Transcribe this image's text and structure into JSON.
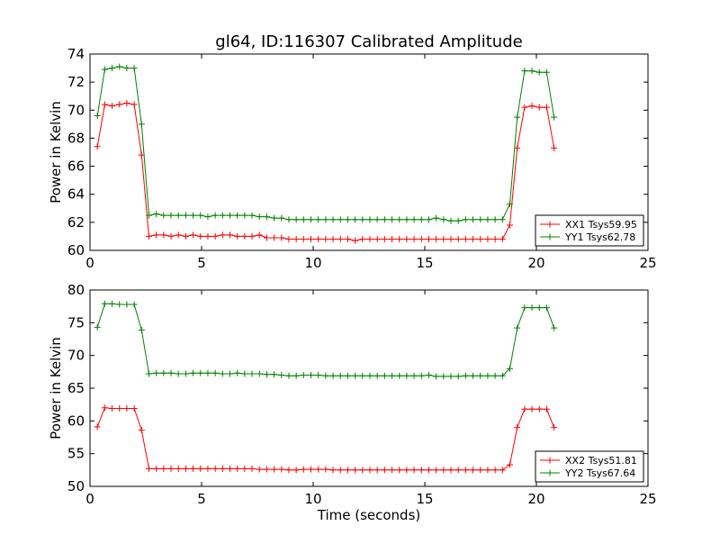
{
  "figure_title": "gl64, ID:116307 Calibrated Amplitude",
  "chart_data": [
    {
      "type": "line",
      "title": "gl64, ID:116307 Calibrated Amplitude",
      "xlabel": "",
      "ylabel": "Power in Kelvin",
      "xlim": [
        0,
        25
      ],
      "ylim": [
        60,
        74
      ],
      "xticks": [
        "0",
        "5",
        "10",
        "15",
        "20",
        "25"
      ],
      "yticks": [
        "60",
        "62",
        "64",
        "66",
        "68",
        "70",
        "72",
        "74"
      ],
      "grid": false,
      "legend_position": "lower-right",
      "x": [
        0.33,
        0.66,
        0.99,
        1.32,
        1.65,
        1.98,
        2.31,
        2.64,
        2.97,
        3.3,
        3.63,
        3.96,
        4.29,
        4.62,
        4.95,
        5.28,
        5.61,
        5.94,
        6.27,
        6.6,
        6.93,
        7.26,
        7.59,
        7.92,
        8.25,
        8.58,
        8.91,
        9.24,
        9.57,
        9.9,
        10.23,
        10.56,
        10.89,
        11.22,
        11.55,
        11.88,
        12.21,
        12.54,
        12.87,
        13.2,
        13.53,
        13.86,
        14.19,
        14.52,
        14.85,
        15.18,
        15.51,
        15.84,
        16.17,
        16.5,
        16.83,
        17.16,
        17.49,
        17.82,
        18.15,
        18.48,
        18.81,
        19.14,
        19.47,
        19.8,
        20.13,
        20.46,
        20.79
      ],
      "series": [
        {
          "name": "XX1 Tsys59.95",
          "color": "#ff0000",
          "values": [
            67.4,
            70.4,
            70.3,
            70.4,
            70.5,
            70.4,
            66.8,
            61.0,
            61.1,
            61.1,
            61.0,
            61.1,
            61.0,
            61.1,
            61.0,
            61.0,
            61.0,
            61.1,
            61.1,
            61.0,
            61.0,
            61.0,
            61.1,
            60.9,
            60.9,
            60.9,
            60.8,
            60.8,
            60.8,
            60.8,
            60.8,
            60.8,
            60.8,
            60.8,
            60.8,
            60.7,
            60.8,
            60.8,
            60.8,
            60.8,
            60.8,
            60.8,
            60.8,
            60.8,
            60.8,
            60.8,
            60.8,
            60.8,
            60.8,
            60.8,
            60.8,
            60.8,
            60.8,
            60.8,
            60.8,
            60.8,
            61.8,
            67.3,
            70.2,
            70.3,
            70.2,
            70.2,
            67.3
          ]
        },
        {
          "name": "YY1 Tsys62.78",
          "color": "#008000",
          "values": [
            69.6,
            72.9,
            73.0,
            73.1,
            73.0,
            73.0,
            69.0,
            62.5,
            62.6,
            62.5,
            62.5,
            62.5,
            62.5,
            62.5,
            62.5,
            62.4,
            62.5,
            62.5,
            62.5,
            62.5,
            62.5,
            62.5,
            62.4,
            62.4,
            62.3,
            62.3,
            62.2,
            62.2,
            62.2,
            62.2,
            62.2,
            62.2,
            62.2,
            62.2,
            62.2,
            62.2,
            62.2,
            62.2,
            62.2,
            62.2,
            62.2,
            62.2,
            62.2,
            62.2,
            62.2,
            62.2,
            62.3,
            62.2,
            62.1,
            62.1,
            62.2,
            62.2,
            62.2,
            62.2,
            62.2,
            62.2,
            63.3,
            69.5,
            72.8,
            72.8,
            72.7,
            72.7,
            69.5
          ]
        }
      ]
    },
    {
      "type": "line",
      "title": "",
      "xlabel": "Time (seconds)",
      "ylabel": "Power in Kelvin",
      "xlim": [
        0,
        25
      ],
      "ylim": [
        50,
        80
      ],
      "xticks": [
        "0",
        "5",
        "10",
        "15",
        "20",
        "25"
      ],
      "yticks": [
        "50",
        "55",
        "60",
        "65",
        "70",
        "75",
        "80"
      ],
      "grid": false,
      "legend_position": "lower-right",
      "x": [
        0.33,
        0.66,
        0.99,
        1.32,
        1.65,
        1.98,
        2.31,
        2.64,
        2.97,
        3.3,
        3.63,
        3.96,
        4.29,
        4.62,
        4.95,
        5.28,
        5.61,
        5.94,
        6.27,
        6.6,
        6.93,
        7.26,
        7.59,
        7.92,
        8.25,
        8.58,
        8.91,
        9.24,
        9.57,
        9.9,
        10.23,
        10.56,
        10.89,
        11.22,
        11.55,
        11.88,
        12.21,
        12.54,
        12.87,
        13.2,
        13.53,
        13.86,
        14.19,
        14.52,
        14.85,
        15.18,
        15.51,
        15.84,
        16.17,
        16.5,
        16.83,
        17.16,
        17.49,
        17.82,
        18.15,
        18.48,
        18.81,
        19.14,
        19.47,
        19.8,
        20.13,
        20.46,
        20.79
      ],
      "series": [
        {
          "name": "XX2 Tsys51.81",
          "color": "#ff0000",
          "values": [
            59.1,
            62.0,
            61.9,
            61.9,
            61.9,
            61.9,
            58.6,
            52.7,
            52.7,
            52.7,
            52.7,
            52.7,
            52.7,
            52.7,
            52.7,
            52.7,
            52.7,
            52.7,
            52.7,
            52.7,
            52.7,
            52.7,
            52.6,
            52.6,
            52.6,
            52.6,
            52.5,
            52.5,
            52.6,
            52.6,
            52.6,
            52.6,
            52.5,
            52.5,
            52.5,
            52.5,
            52.5,
            52.5,
            52.5,
            52.5,
            52.5,
            52.5,
            52.5,
            52.5,
            52.5,
            52.5,
            52.5,
            52.5,
            52.5,
            52.5,
            52.5,
            52.5,
            52.5,
            52.5,
            52.5,
            52.5,
            53.3,
            59.0,
            61.8,
            61.8,
            61.8,
            61.8,
            59.0
          ]
        },
        {
          "name": "YY2 Tsys67.64",
          "color": "#008000",
          "values": [
            74.3,
            77.9,
            77.9,
            77.8,
            77.8,
            77.8,
            73.9,
            67.2,
            67.3,
            67.3,
            67.3,
            67.2,
            67.2,
            67.3,
            67.3,
            67.3,
            67.3,
            67.2,
            67.2,
            67.3,
            67.2,
            67.2,
            67.2,
            67.1,
            67.1,
            67.0,
            66.9,
            66.9,
            67.0,
            67.0,
            67.0,
            66.9,
            66.9,
            66.9,
            66.9,
            66.9,
            66.9,
            66.9,
            66.9,
            66.9,
            66.9,
            66.9,
            66.9,
            66.9,
            66.9,
            67.0,
            66.8,
            66.8,
            66.8,
            66.8,
            66.9,
            66.9,
            66.9,
            66.9,
            66.9,
            66.9,
            68.0,
            74.2,
            77.3,
            77.3,
            77.3,
            77.3,
            74.2
          ]
        }
      ]
    }
  ]
}
